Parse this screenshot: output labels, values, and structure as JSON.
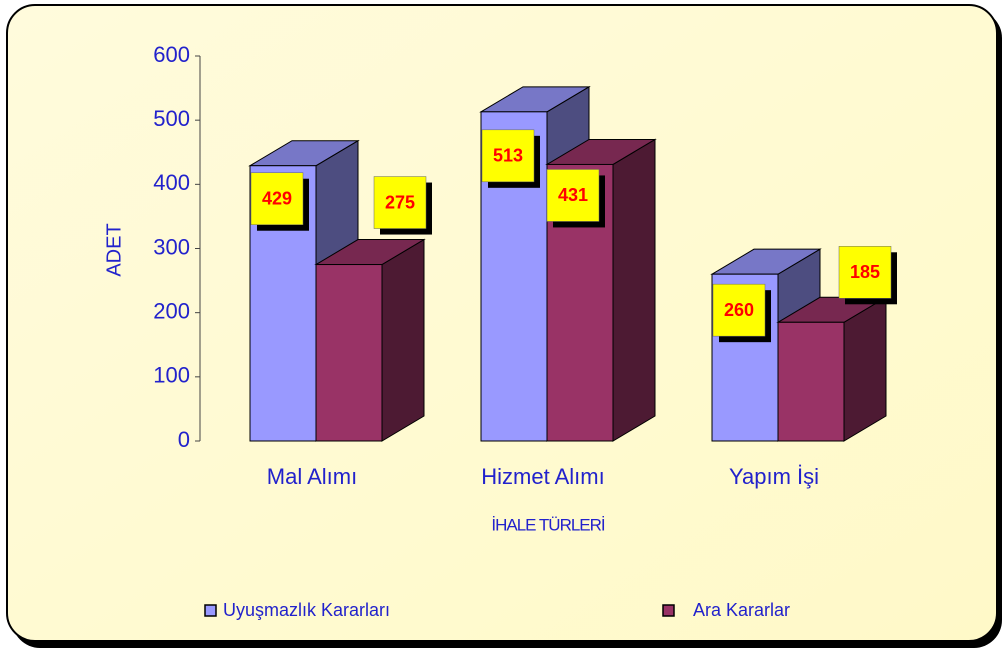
{
  "chart_data": {
    "type": "bar3d",
    "categories": [
      "Mal Alımı",
      "Hizmet Alımı",
      "Yapım İşi"
    ],
    "series": [
      {
        "name": "Uyuşmazlık Kararları",
        "color": "#9999ff",
        "values": [
          429,
          513,
          260
        ]
      },
      {
        "name": "Ara Kararlar",
        "color": "#993366",
        "values": [
          275,
          431,
          185
        ]
      }
    ],
    "ylabel": "ADET",
    "xlabel": "İHALE TÜRLERİ",
    "ylim": [
      0,
      600
    ],
    "yticks": [
      0,
      100,
      200,
      300,
      400,
      500,
      600
    ]
  }
}
